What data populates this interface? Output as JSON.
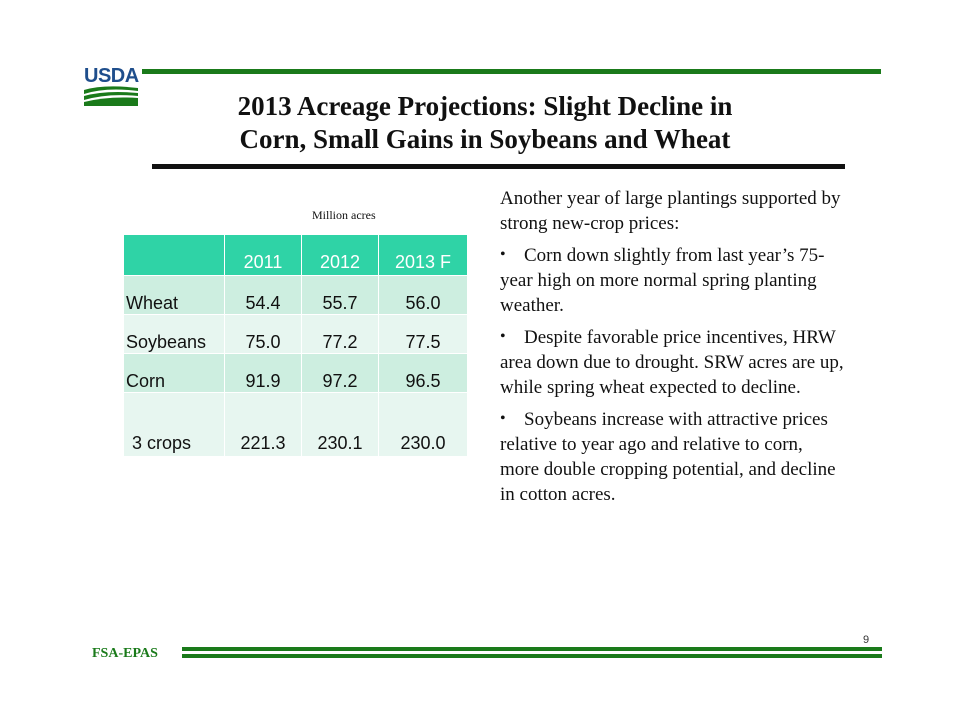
{
  "header": {
    "logo_text": "USDA",
    "title_line1": "2013 Acreage Projections: Slight Decline in",
    "title_line2": "Corn, Small Gains in Soybeans and Wheat"
  },
  "table": {
    "unit_label": "Million acres",
    "columns": [
      "",
      "2011",
      "2012",
      "2013  F"
    ],
    "rows": [
      {
        "crop": "Wheat",
        "v2011": "54.4",
        "v2012": "55.7",
        "v2013": "56.0"
      },
      {
        "crop": "Soybeans",
        "v2011": "75.0",
        "v2012": "77.2",
        "v2013": "77.5"
      },
      {
        "crop": "Corn",
        "v2011": "91.9",
        "v2012": "97.2",
        "v2013": "96.5"
      },
      {
        "crop": "3 crops",
        "v2011": "221.3",
        "v2012": "230.1",
        "v2013": "230.0"
      }
    ]
  },
  "notes": {
    "intro": "Another year of large plantings supported by strong new-crop prices:",
    "bullet_symbol": "•",
    "bullets": [
      "Corn down slightly from last year’s 75-year high on more normal spring planting weather.",
      "Despite  favorable price incentives, HRW area down due to drought.  SRW acres are up, while spring wheat expected to decline.",
      "Soybeans increase with attractive prices relative to year ago and relative to corn, more double cropping potential, and decline in cotton acres."
    ]
  },
  "footer": {
    "label": "FSA-EPAS",
    "page_number": "9"
  },
  "colors": {
    "brand_green": "#1a7a1a",
    "usda_blue": "#1f4e8c",
    "table_header": "#2fd3a6",
    "table_row_dark": "#cdeee0",
    "table_row_light": "#e7f6f0"
  }
}
